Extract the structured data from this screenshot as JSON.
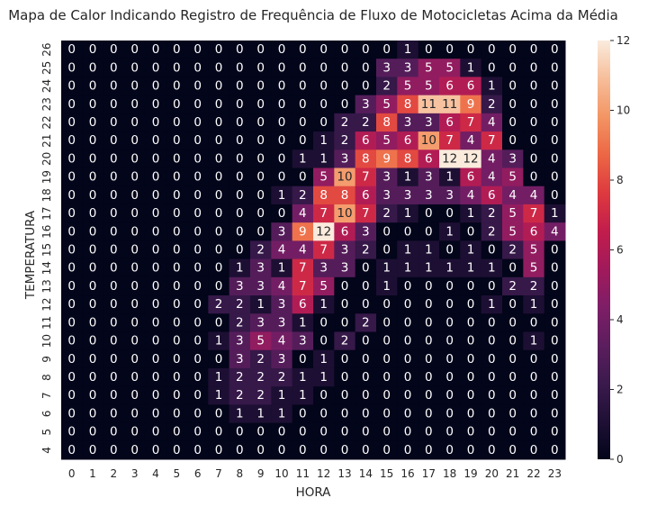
{
  "chart_data": {
    "type": "heatmap",
    "title": "Mapa de Calor Indicando Registro de Frequência de Fluxo de Motocicletas Acima da Média",
    "xlabel": "HORA",
    "ylabel": "TEMPERATURA",
    "x": [
      "0",
      "1",
      "2",
      "3",
      "4",
      "5",
      "6",
      "7",
      "8",
      "9",
      "10",
      "11",
      "12",
      "13",
      "14",
      "15",
      "16",
      "17",
      "18",
      "19",
      "20",
      "21",
      "22",
      "23"
    ],
    "y": [
      "26",
      "25",
      "24",
      "23",
      "22",
      "21",
      "20",
      "19",
      "18",
      "17",
      "16",
      "15",
      "14",
      "13",
      "12",
      "11",
      "10",
      "9",
      "8",
      "7",
      "6",
      "5",
      "4"
    ],
    "values": [
      [
        0,
        0,
        0,
        0,
        0,
        0,
        0,
        0,
        0,
        0,
        0,
        0,
        0,
        0,
        0,
        0,
        1,
        0,
        0,
        0,
        0,
        0,
        0,
        0
      ],
      [
        0,
        0,
        0,
        0,
        0,
        0,
        0,
        0,
        0,
        0,
        0,
        0,
        0,
        0,
        0,
        3,
        3,
        5,
        5,
        1,
        0,
        0,
        0,
        0
      ],
      [
        0,
        0,
        0,
        0,
        0,
        0,
        0,
        0,
        0,
        0,
        0,
        0,
        0,
        0,
        0,
        2,
        5,
        5,
        6,
        6,
        1,
        0,
        0,
        0
      ],
      [
        0,
        0,
        0,
        0,
        0,
        0,
        0,
        0,
        0,
        0,
        0,
        0,
        0,
        0,
        3,
        5,
        8,
        11,
        11,
        9,
        2,
        0,
        0,
        0
      ],
      [
        0,
        0,
        0,
        0,
        0,
        0,
        0,
        0,
        0,
        0,
        0,
        0,
        0,
        2,
        2,
        8,
        3,
        3,
        6,
        7,
        4,
        0,
        0,
        0
      ],
      [
        0,
        0,
        0,
        0,
        0,
        0,
        0,
        0,
        0,
        0,
        0,
        0,
        1,
        2,
        6,
        5,
        6,
        10,
        7,
        4,
        7,
        0,
        0,
        0
      ],
      [
        0,
        0,
        0,
        0,
        0,
        0,
        0,
        0,
        0,
        0,
        0,
        1,
        1,
        3,
        8,
        9,
        8,
        6,
        12,
        12,
        4,
        3,
        0,
        0
      ],
      [
        0,
        0,
        0,
        0,
        0,
        0,
        0,
        0,
        0,
        0,
        0,
        0,
        5,
        10,
        7,
        3,
        1,
        3,
        1,
        6,
        4,
        5,
        0,
        0
      ],
      [
        0,
        0,
        0,
        0,
        0,
        0,
        0,
        0,
        0,
        0,
        1,
        2,
        8,
        8,
        6,
        3,
        3,
        3,
        3,
        4,
        6,
        4,
        4,
        0
      ],
      [
        0,
        0,
        0,
        0,
        0,
        0,
        0,
        0,
        0,
        0,
        0,
        4,
        7,
        10,
        7,
        2,
        1,
        0,
        0,
        1,
        2,
        5,
        7,
        1
      ],
      [
        0,
        0,
        0,
        0,
        0,
        0,
        0,
        0,
        0,
        0,
        3,
        9,
        12,
        6,
        3,
        0,
        0,
        0,
        1,
        0,
        2,
        5,
        6,
        4
      ],
      [
        0,
        0,
        0,
        0,
        0,
        0,
        0,
        0,
        0,
        2,
        4,
        4,
        7,
        3,
        2,
        0,
        1,
        1,
        0,
        1,
        0,
        2,
        5,
        0
      ],
      [
        0,
        0,
        0,
        0,
        0,
        0,
        0,
        0,
        1,
        3,
        1,
        7,
        3,
        3,
        0,
        1,
        1,
        1,
        1,
        1,
        1,
        0,
        5,
        0
      ],
      [
        0,
        0,
        0,
        0,
        0,
        0,
        0,
        0,
        3,
        3,
        4,
        7,
        5,
        0,
        0,
        1,
        0,
        0,
        0,
        0,
        0,
        2,
        2,
        0
      ],
      [
        0,
        0,
        0,
        0,
        0,
        0,
        0,
        2,
        2,
        1,
        3,
        6,
        1,
        0,
        0,
        0,
        0,
        0,
        0,
        0,
        1,
        0,
        1,
        0
      ],
      [
        0,
        0,
        0,
        0,
        0,
        0,
        0,
        0,
        2,
        3,
        3,
        1,
        0,
        0,
        2,
        0,
        0,
        0,
        0,
        0,
        0,
        0,
        0,
        0
      ],
      [
        0,
        0,
        0,
        0,
        0,
        0,
        0,
        1,
        3,
        5,
        4,
        3,
        0,
        2,
        0,
        0,
        0,
        0,
        0,
        0,
        0,
        0,
        1,
        0
      ],
      [
        0,
        0,
        0,
        0,
        0,
        0,
        0,
        0,
        3,
        2,
        3,
        0,
        1,
        0,
        0,
        0,
        0,
        0,
        0,
        0,
        0,
        0,
        0,
        0
      ],
      [
        0,
        0,
        0,
        0,
        0,
        0,
        0,
        1,
        2,
        2,
        2,
        1,
        1,
        0,
        0,
        0,
        0,
        0,
        0,
        0,
        0,
        0,
        0,
        0
      ],
      [
        0,
        0,
        0,
        0,
        0,
        0,
        0,
        1,
        2,
        2,
        1,
        1,
        0,
        0,
        0,
        0,
        0,
        0,
        0,
        0,
        0,
        0,
        0,
        0
      ],
      [
        0,
        0,
        0,
        0,
        0,
        0,
        0,
        0,
        1,
        1,
        1,
        0,
        0,
        0,
        0,
        0,
        0,
        0,
        0,
        0,
        0,
        0,
        0,
        0
      ],
      [
        0,
        0,
        0,
        0,
        0,
        0,
        0,
        0,
        0,
        0,
        0,
        0,
        0,
        0,
        0,
        0,
        0,
        0,
        0,
        0,
        0,
        0,
        0,
        0
      ],
      [
        0,
        0,
        0,
        0,
        0,
        0,
        0,
        0,
        0,
        0,
        0,
        0,
        0,
        0,
        0,
        0,
        0,
        0,
        0,
        0,
        0,
        0,
        0,
        0
      ]
    ],
    "vmin": 0,
    "vmax": 12,
    "colorbar_ticks": [
      0,
      2,
      4,
      6,
      8,
      10,
      12
    ],
    "colormap": "rocket",
    "colormap_stops": [
      "#03051a",
      "#1f1035",
      "#3b1a4d",
      "#5c1e5e",
      "#7e1e67",
      "#a11a5b",
      "#c21d4c",
      "#dd3a3f",
      "#ec6745",
      "#f39564",
      "#f6be9a",
      "#faebdd"
    ],
    "annotated": true,
    "grid": false,
    "legend": "colorbar-right"
  }
}
